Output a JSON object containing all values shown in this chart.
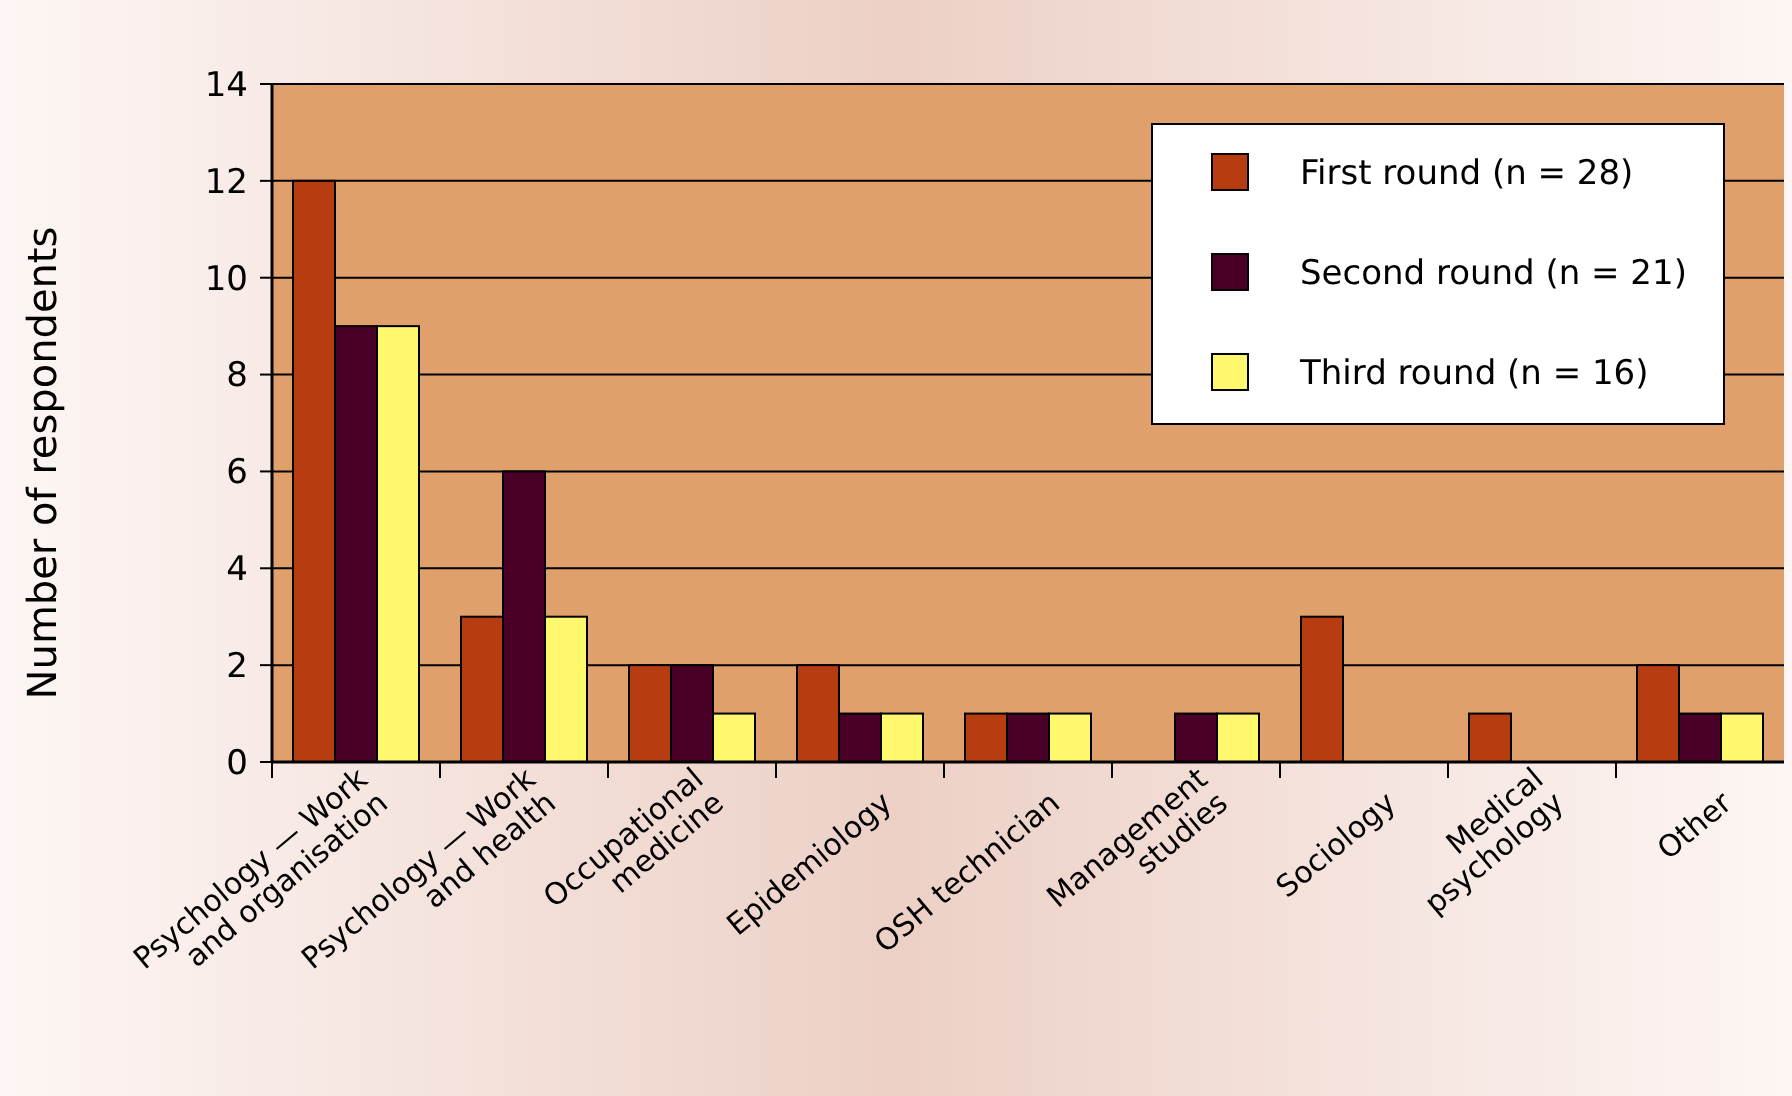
{
  "chart_data": {
    "type": "bar",
    "ylabel": "Number of respondents",
    "categories": [
      "Psychology — Work\nand organisation",
      "Psychology — Work\nand health",
      "Occupational\nmedicine",
      "Epidemiology",
      "OSH technician",
      "Management\nstudies",
      "Sociology",
      "Medical\npsychology",
      "Other"
    ],
    "series": [
      {
        "name": "First round (n = 28)",
        "color": "#b83c12",
        "values": [
          12,
          3,
          2,
          2,
          1,
          0,
          3,
          1,
          2
        ]
      },
      {
        "name": "Second round (n = 21)",
        "color": "#4a0026",
        "values": [
          9,
          6,
          2,
          1,
          1,
          1,
          0,
          0,
          1
        ]
      },
      {
        "name": "Third round (n = 16)",
        "color": "#fff76e",
        "values": [
          9,
          3,
          1,
          1,
          1,
          1,
          0,
          0,
          1
        ]
      }
    ],
    "ylim": [
      0,
      14
    ],
    "yticks": [
      0,
      2,
      4,
      6,
      8,
      10,
      12,
      14
    ],
    "grid": "y",
    "legend": "top right"
  }
}
